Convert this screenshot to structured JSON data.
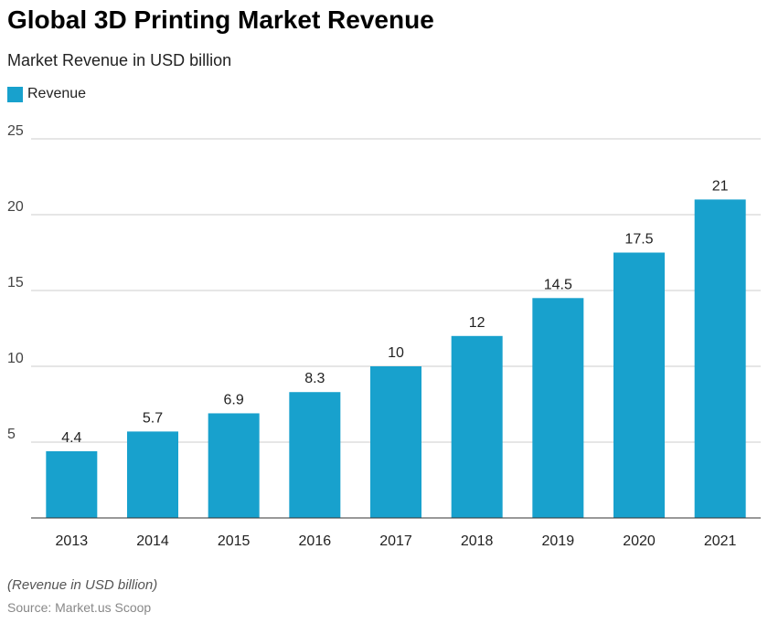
{
  "chart_data": {
    "type": "bar",
    "title": "Global 3D Printing Market Revenue",
    "subtitle": "Market Revenue in USD billion",
    "categories": [
      "2013",
      "2014",
      "2015",
      "2016",
      "2017",
      "2018",
      "2019",
      "2020",
      "2021"
    ],
    "series": [
      {
        "name": "Revenue",
        "values": [
          4.4,
          5.7,
          6.9,
          8.3,
          10,
          12,
          14.5,
          17.5,
          21
        ],
        "color": "#18a1cd"
      }
    ],
    "yticks": [
      5,
      10,
      15,
      20,
      25
    ],
    "ylim": [
      0,
      25
    ],
    "grid": true,
    "legend": "top-left",
    "note": "(Revenue in USD billion)",
    "source": "Source: Market.us Scoop"
  }
}
